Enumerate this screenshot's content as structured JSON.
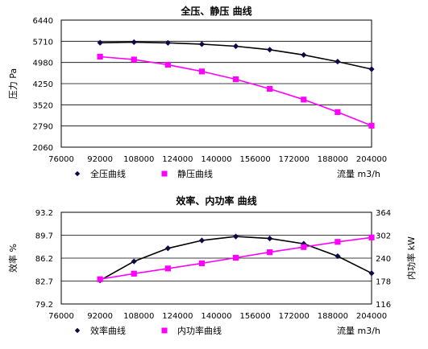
{
  "chart_data": [
    {
      "type": "line",
      "title": "全压、静压 曲线",
      "xlabel": "流量 m3/h",
      "ylabel": "压力 Pa",
      "xlim": [
        76000,
        204000
      ],
      "ylim": [
        2060,
        6440
      ],
      "xticks": [
        "76000",
        "92000",
        "108000",
        "124000",
        "140000",
        "156000",
        "172000",
        "188000",
        "204000"
      ],
      "yticks": [
        "2060",
        "2790",
        "3520",
        "4250",
        "4980",
        "5710",
        "6440"
      ],
      "grid": true,
      "legend_position": "bottom",
      "series": [
        {
          "name": "全压曲线",
          "marker": "diamond",
          "marker_color": "#0a0a4a",
          "line_color": "#000000",
          "axis": "left",
          "x": [
            92000,
            106000,
            120000,
            134000,
            148000,
            162000,
            176000,
            190000,
            204000
          ],
          "y": [
            5660,
            5680,
            5655,
            5610,
            5540,
            5420,
            5240,
            5010,
            4750
          ]
        },
        {
          "name": "静压曲线",
          "marker": "square",
          "marker_color": "#ff00ff",
          "line_color": "#ff00ff",
          "axis": "left",
          "x": [
            92000,
            106000,
            120000,
            134000,
            148000,
            162000,
            176000,
            190000,
            204000
          ],
          "y": [
            5180,
            5080,
            4900,
            4670,
            4400,
            4070,
            3700,
            3270,
            2800
          ]
        }
      ]
    },
    {
      "type": "line",
      "title": "效率、内功率 曲线",
      "xlabel": "流量 m3/h",
      "ylabel": "效率 %",
      "y2label": "内功率 kW",
      "xlim": [
        76000,
        204000
      ],
      "ylim": [
        79.2,
        93.2
      ],
      "y2lim": [
        116,
        364
      ],
      "xticks": [
        "76000",
        "92000",
        "108000",
        "124000",
        "140000",
        "156000",
        "172000",
        "188000",
        "204000"
      ],
      "yticks": [
        "79.2",
        "82.7",
        "86.2",
        "89.7",
        "93.2"
      ],
      "y2ticks": [
        "116",
        "178",
        "240",
        "302",
        "364"
      ],
      "grid": true,
      "legend_position": "bottom",
      "series": [
        {
          "name": "效率曲线",
          "marker": "diamond",
          "marker_color": "#0a0a4a",
          "line_color": "#000000",
          "axis": "left",
          "x": [
            92000,
            106000,
            120000,
            134000,
            148000,
            162000,
            176000,
            190000,
            204000
          ],
          "y": [
            82.8,
            85.7,
            87.7,
            88.9,
            89.5,
            89.2,
            88.4,
            86.5,
            83.9
          ]
        },
        {
          "name": "内功率曲线",
          "marker": "square",
          "marker_color": "#ff00ff",
          "line_color": "#ff00ff",
          "axis": "right",
          "x": [
            92000,
            106000,
            120000,
            134000,
            148000,
            162000,
            176000,
            190000,
            204000
          ],
          "y": [
            183,
            198,
            212,
            226,
            241,
            256,
            270,
            284,
            296
          ]
        }
      ]
    }
  ]
}
